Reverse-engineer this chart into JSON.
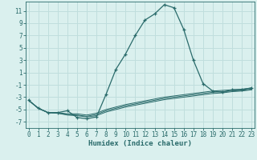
{
  "xlabel": "Humidex (Indice chaleur)",
  "bg_color": "#daf0ee",
  "grid_color": "#c0dedd",
  "line_color": "#2a6b6b",
  "x_ticks": [
    0,
    1,
    2,
    3,
    4,
    5,
    6,
    7,
    8,
    9,
    10,
    11,
    12,
    13,
    14,
    15,
    16,
    17,
    18,
    19,
    20,
    21,
    22,
    23
  ],
  "y_ticks": [
    -7,
    -5,
    -3,
    -1,
    1,
    3,
    5,
    7,
    9,
    11
  ],
  "ylim": [
    -8.0,
    12.5
  ],
  "xlim": [
    -0.3,
    23.3
  ],
  "series": {
    "line1": {
      "x": [
        0,
        1,
        2,
        3,
        4,
        5,
        6,
        7,
        8,
        9,
        10,
        11,
        12,
        13,
        14,
        15,
        16,
        17,
        18,
        19,
        20,
        21,
        22,
        23
      ],
      "y": [
        -3.5,
        -4.8,
        -5.5,
        -5.5,
        -5.2,
        -6.3,
        -6.5,
        -6.2,
        -2.5,
        1.5,
        4.0,
        7.0,
        9.5,
        10.5,
        12.0,
        11.5,
        8.0,
        3.0,
        -0.8,
        -2.0,
        -2.2,
        -1.8,
        -1.8,
        -1.5
      ]
    },
    "line2": {
      "x": [
        0,
        1,
        2,
        3,
        4,
        5,
        6,
        7,
        8,
        9,
        10,
        11,
        12,
        13,
        14,
        15,
        16,
        17,
        18,
        19,
        20,
        21,
        22,
        23
      ],
      "y": [
        -3.5,
        -4.8,
        -5.5,
        -5.5,
        -5.7,
        -5.7,
        -5.9,
        -5.6,
        -5.0,
        -4.6,
        -4.2,
        -3.9,
        -3.6,
        -3.3,
        -3.0,
        -2.8,
        -2.6,
        -2.4,
        -2.2,
        -2.0,
        -1.9,
        -1.8,
        -1.7,
        -1.5
      ]
    },
    "line3": {
      "x": [
        0,
        1,
        2,
        3,
        4,
        5,
        6,
        7,
        8,
        9,
        10,
        11,
        12,
        13,
        14,
        15,
        16,
        17,
        18,
        19,
        20,
        21,
        22,
        23
      ],
      "y": [
        -3.5,
        -4.8,
        -5.5,
        -5.6,
        -5.8,
        -5.9,
        -6.1,
        -5.8,
        -5.2,
        -4.8,
        -4.4,
        -4.1,
        -3.8,
        -3.5,
        -3.2,
        -3.0,
        -2.8,
        -2.6,
        -2.4,
        -2.2,
        -2.1,
        -2.0,
        -1.9,
        -1.7
      ]
    },
    "line4": {
      "x": [
        0,
        1,
        2,
        3,
        4,
        5,
        6,
        7,
        8,
        9,
        10,
        11,
        12,
        13,
        14,
        15,
        16,
        17,
        18,
        19,
        20,
        21,
        22,
        23
      ],
      "y": [
        -3.5,
        -4.8,
        -5.5,
        -5.6,
        -5.9,
        -6.0,
        -6.2,
        -6.0,
        -5.4,
        -5.0,
        -4.6,
        -4.3,
        -4.0,
        -3.7,
        -3.4,
        -3.2,
        -3.0,
        -2.8,
        -2.6,
        -2.4,
        -2.3,
        -2.1,
        -2.0,
        -1.8
      ]
    }
  },
  "marker": "+",
  "marker_size": 3,
  "linewidth": 0.9,
  "tick_fontsize": 5.5,
  "xlabel_fontsize": 6.5
}
